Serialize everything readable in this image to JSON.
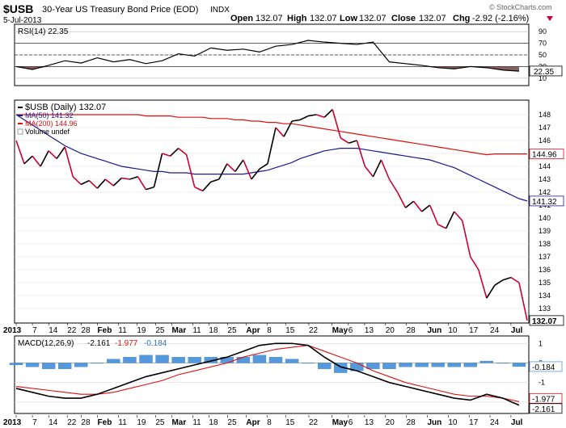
{
  "header": {
    "symbol": "$USB",
    "description": "30-Year US Treasury Bond Price (EOD)",
    "exchange": "INDX",
    "date": "5-Jul-2013",
    "open_label": "Open",
    "open": "132.07",
    "high_label": "High",
    "high": "132.07",
    "low_label": "Low",
    "low": "132.07",
    "close_label": "Close",
    "close": "132.07",
    "chg_label": "Chg",
    "chg": "-2.92 (-2.16%)",
    "copyright": "© StockCharts.com"
  },
  "colors": {
    "price_black": "#000000",
    "price_down": "#cc0033",
    "ma50": "#1a1a8c",
    "ma200": "#dd1111",
    "histogram": "#5599dd",
    "rsi_fill": "#6b3a3a"
  },
  "chart_data": [
    {
      "type": "line",
      "panel": "rsi",
      "legend": "RSI(14) 22.35",
      "ylim": [
        0,
        100
      ],
      "y_ticks": [
        10,
        30,
        50,
        70,
        90
      ],
      "reference_lines": [
        30,
        50,
        70
      ],
      "last_value": "22.35",
      "x": [
        0,
        4,
        8,
        12,
        16,
        20,
        24,
        28,
        32,
        36,
        40,
        44,
        48,
        52,
        56,
        60,
        64,
        68,
        72,
        76,
        80,
        84,
        88,
        92,
        96,
        100,
        104,
        108,
        112,
        116,
        120,
        124
      ],
      "values": [
        30,
        25,
        32,
        40,
        36,
        45,
        38,
        42,
        35,
        40,
        52,
        48,
        62,
        58,
        60,
        55,
        65,
        68,
        75,
        72,
        70,
        68,
        72,
        38,
        35,
        32,
        28,
        26,
        30,
        28,
        24,
        22
      ]
    },
    {
      "type": "line",
      "panel": "price",
      "series_legend": [
        {
          "name": "$USB (Daily) 132.07"
        },
        {
          "name": "MA(50) 141.32"
        },
        {
          "name": "MA(200) 144.96"
        },
        {
          "name": "Volume undef"
        }
      ],
      "ylim": [
        132,
        149
      ],
      "y_ticks": [
        133,
        134,
        135,
        136,
        137,
        138,
        139,
        140,
        141,
        142,
        143,
        144,
        145,
        146,
        147,
        148
      ],
      "last_labels": {
        "ma200": "144.96",
        "ma50": "141.32",
        "close": "132.07"
      },
      "x_labels": [
        "2013",
        "7",
        "14",
        "22",
        "28",
        "Feb",
        "11",
        "19",
        "25",
        "Mar",
        "11",
        "18",
        "25",
        "Apr",
        "8",
        "15",
        "22",
        "May",
        "6",
        "13",
        "20",
        "28",
        "Jun",
        "10",
        "17",
        "24",
        "Jul"
      ],
      "x": [
        0,
        2,
        4,
        6,
        8,
        10,
        12,
        14,
        16,
        18,
        20,
        22,
        24,
        26,
        28,
        30,
        32,
        34,
        36,
        38,
        40,
        42,
        44,
        46,
        48,
        50,
        52,
        54,
        56,
        58,
        60,
        62,
        64,
        66,
        68,
        70,
        72,
        74,
        76,
        78,
        80,
        82,
        84,
        86,
        88,
        90,
        92,
        94,
        96,
        98,
        100,
        102,
        104,
        106,
        108,
        110,
        112,
        114,
        116,
        118,
        120,
        122,
        124,
        126
      ],
      "series": [
        {
          "name": "$USB (Daily) 132.07",
          "values": [
            146.0,
            144.2,
            144.8,
            144.0,
            145.2,
            144.6,
            145.5,
            143.2,
            142.6,
            142.9,
            142.3,
            143.0,
            142.5,
            143.1,
            143.0,
            143.2,
            142.2,
            142.4,
            145.0,
            144.8,
            145.4,
            144.9,
            142.4,
            142.1,
            142.8,
            143.0,
            144.2,
            143.6,
            144.5,
            143.0,
            143.8,
            144.2,
            147.0,
            146.3,
            147.5,
            147.6,
            147.9,
            148.0,
            147.8,
            148.4,
            146.2,
            145.8,
            146.0,
            144.0,
            143.2,
            144.5,
            143.0,
            142.0,
            140.8,
            141.3,
            140.5,
            141.0,
            139.5,
            139.2,
            140.5,
            139.8,
            137.0,
            136.0,
            133.8,
            134.8,
            135.2,
            135.4,
            135.0,
            132.07
          ]
        },
        {
          "name": "MA(50) 141.32",
          "values": [
            148.0,
            147.6,
            147.2,
            146.8,
            146.4,
            146.0,
            145.6,
            145.3,
            145.0,
            144.8,
            144.6,
            144.4,
            144.2,
            144.0,
            143.9,
            143.8,
            143.7,
            143.6,
            143.6,
            143.5,
            143.5,
            143.5,
            143.4,
            143.4,
            143.4,
            143.4,
            143.4,
            143.4,
            143.4,
            143.5,
            143.6,
            143.7,
            143.9,
            144.1,
            144.3,
            144.6,
            144.8,
            145.0,
            145.2,
            145.3,
            145.4,
            145.4,
            145.4,
            145.3,
            145.2,
            145.1,
            145.0,
            144.9,
            144.8,
            144.7,
            144.6,
            144.5,
            144.3,
            144.1,
            143.9,
            143.6,
            143.3,
            143.0,
            142.7,
            142.4,
            142.1,
            141.8,
            141.5,
            141.32
          ]
        },
        {
          "name": "MA(200) 144.96",
          "values": [
            148.0,
            148.0,
            148.0,
            148.0,
            148.0,
            148.0,
            148.0,
            148.0,
            148.0,
            148.0,
            148.0,
            148.0,
            148.0,
            148.0,
            148.0,
            148.0,
            147.9,
            147.9,
            147.9,
            147.9,
            147.8,
            147.8,
            147.8,
            147.8,
            147.7,
            147.7,
            147.7,
            147.6,
            147.6,
            147.5,
            147.5,
            147.4,
            147.4,
            147.3,
            147.3,
            147.2,
            147.1,
            147.0,
            146.9,
            146.8,
            146.7,
            146.6,
            146.5,
            146.4,
            146.3,
            146.2,
            146.1,
            146.0,
            145.9,
            145.8,
            145.7,
            145.6,
            145.5,
            145.4,
            145.3,
            145.2,
            145.1,
            145.0,
            144.9,
            144.96,
            144.96,
            144.96,
            144.96,
            144.96
          ]
        }
      ]
    },
    {
      "type": "line",
      "panel": "macd",
      "legend": {
        "label": "MACD(12,26,9)",
        "macd": "-2.161",
        "signal": "-1.977",
        "hist": "-0.184"
      },
      "y_ticks": [
        1,
        0,
        -1,
        -2
      ],
      "ylim": [
        -2.5,
        1.3
      ],
      "last_labels": {
        "hist": "-0.184",
        "signal": "-1.977",
        "macd": "-2.161"
      },
      "x_labels": [
        "2013",
        "7",
        "14",
        "22",
        "28",
        "Feb",
        "11",
        "19",
        "25",
        "Mar",
        "11",
        "18",
        "25",
        "Apr",
        "8",
        "15",
        "22",
        "May",
        "6",
        "13",
        "20",
        "28",
        "Jun",
        "10",
        "17",
        "24",
        "Jul"
      ],
      "x": [
        0,
        4,
        8,
        12,
        16,
        20,
        24,
        28,
        32,
        36,
        40,
        44,
        48,
        52,
        56,
        60,
        64,
        68,
        72,
        76,
        80,
        84,
        88,
        92,
        96,
        100,
        104,
        108,
        112,
        116,
        120,
        124
      ],
      "series": [
        {
          "name": "MACD",
          "values": [
            -1.3,
            -1.5,
            -1.7,
            -1.8,
            -1.8,
            -1.6,
            -1.3,
            -1.0,
            -0.7,
            -0.5,
            -0.3,
            -0.1,
            0.1,
            0.3,
            0.6,
            0.9,
            1.0,
            1.0,
            0.9,
            0.3,
            -0.2,
            -0.4,
            -0.7,
            -1.0,
            -1.2,
            -1.4,
            -1.6,
            -1.8,
            -1.9,
            -1.6,
            -1.8,
            -2.161
          ]
        },
        {
          "name": "Signal",
          "values": [
            -1.2,
            -1.3,
            -1.4,
            -1.5,
            -1.6,
            -1.6,
            -1.5,
            -1.3,
            -1.1,
            -0.9,
            -0.6,
            -0.4,
            -0.2,
            0.0,
            0.3,
            0.5,
            0.7,
            0.8,
            0.9,
            0.6,
            0.3,
            0.0,
            -0.4,
            -0.7,
            -1.0,
            -1.2,
            -1.4,
            -1.6,
            -1.7,
            -1.7,
            -1.8,
            -1.977
          ]
        },
        {
          "name": "Histogram",
          "values": [
            -0.1,
            -0.2,
            -0.3,
            -0.3,
            -0.2,
            0.0,
            0.2,
            0.3,
            0.4,
            0.4,
            0.3,
            0.3,
            0.3,
            0.3,
            0.3,
            0.4,
            0.3,
            0.2,
            0.0,
            -0.3,
            -0.5,
            -0.4,
            -0.3,
            -0.3,
            -0.2,
            -0.2,
            -0.2,
            -0.2,
            -0.2,
            0.1,
            0.0,
            -0.184
          ]
        }
      ]
    }
  ]
}
